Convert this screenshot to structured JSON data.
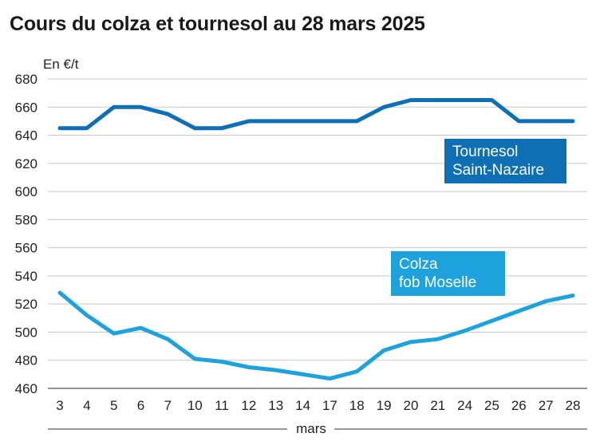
{
  "chart_data": {
    "type": "line",
    "title": "Cours du colza et tournesol au 28 mars 2025",
    "ylabel": "En €/t",
    "xlabel": "mars",
    "ylim": [
      460,
      680
    ],
    "yticks": [
      460,
      480,
      500,
      520,
      540,
      560,
      580,
      600,
      620,
      640,
      660,
      680
    ],
    "categories": [
      "3",
      "4",
      "5",
      "6",
      "7",
      "10",
      "11",
      "12",
      "13",
      "14",
      "17",
      "18",
      "19",
      "20",
      "21",
      "24",
      "25",
      "26",
      "27",
      "28"
    ],
    "series": [
      {
        "name": "Tournesol\nSaint-Nazaire",
        "color": "#0e6fb4",
        "values": [
          645,
          645,
          660,
          660,
          655,
          645,
          645,
          650,
          650,
          650,
          650,
          650,
          660,
          665,
          665,
          665,
          665,
          650,
          650,
          650
        ]
      },
      {
        "name": "Colza\nfob Moselle",
        "color": "#1ea2dc",
        "values": [
          528,
          512,
          499,
          503,
          495,
          481,
          479,
          475,
          473,
          470,
          467,
          472,
          487,
          493,
          495,
          501,
          508,
          515,
          522,
          526
        ]
      }
    ],
    "grid": "horizontal"
  }
}
